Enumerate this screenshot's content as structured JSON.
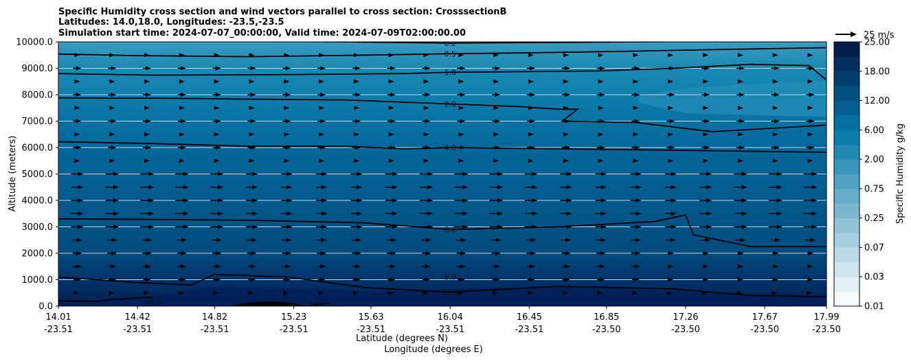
{
  "chart_data": {
    "type": "cross-section",
    "title_lines": [
      "Specific Humidity cross section and wind vectors parallel to cross section: CrosssectionB",
      "Latitudes: 14.0,18.0, Longitudes: -23.5,-23.5",
      "Simulation start time: 2024-07-07_00:00:00, Valid time: 2024-07-09T02:00:00.00"
    ],
    "ylabel": "Altitude (meters)",
    "xlabel_lat": "Latitude (degrees N)",
    "xlabel_lon": "Longitude (degrees E)",
    "ylim": [
      0,
      10000
    ],
    "y_ticks": [
      "0.0",
      "1000.0",
      "2000.0",
      "3000.0",
      "4000.0",
      "5000.0",
      "6000.0",
      "7000.0",
      "8000.0",
      "9000.0",
      "10000.0"
    ],
    "x_ticks": [
      {
        "lat": "14.01",
        "lon": "-23.51"
      },
      {
        "lat": "14.42",
        "lon": "-23.51"
      },
      {
        "lat": "14.82",
        "lon": "-23.51"
      },
      {
        "lat": "15.23",
        "lon": "-23.51"
      },
      {
        "lat": "15.63",
        "lon": "-23.51"
      },
      {
        "lat": "16.04",
        "lon": "-23.51"
      },
      {
        "lat": "16.45",
        "lon": "-23.51"
      },
      {
        "lat": "16.85",
        "lon": "-23.50"
      },
      {
        "lat": "17.26",
        "lon": "-23.50"
      },
      {
        "lat": "17.67",
        "lon": "-23.50"
      },
      {
        "lat": "17.99",
        "lon": "-23.50"
      }
    ],
    "colorbar": {
      "label": "Specific Humidity g/kg",
      "tick_labels": [
        "0.01",
        "0.03",
        "0.07",
        "0.25",
        "0.75",
        "2.00",
        "6.00",
        "12.00",
        "18.00",
        "25.00"
      ],
      "levels": [
        "0.01",
        "0.02",
        "0.03",
        "0.05",
        "0.07",
        "0.1",
        "0.25",
        "0.5",
        "0.75",
        "1.0",
        "2.00",
        "4.0",
        "6.00",
        "8.0",
        "12.00",
        "16.0",
        "18.00",
        "22.0",
        "25.00"
      ],
      "colors": [
        "#f5fafc",
        "#e3f0f5",
        "#cfe5ee",
        "#bbdae6",
        "#a6cfdf",
        "#92c4d8",
        "#7cb9d1",
        "#67adc9",
        "#50a1c2",
        "#3995bb",
        "#1f89b3",
        "#0a7dab",
        "#0670a1",
        "#045f90",
        "#034f80",
        "#023f6f",
        "#022f5e",
        "#011f4d"
      ]
    },
    "quiver_key": {
      "label": "25 m/s",
      "value": 25
    },
    "contours": [
      {
        "level": 0.2,
        "label": "0.2",
        "label_lat": 16.04,
        "label_alt": 9950,
        "profile": [
          [
            14.01,
            10050
          ],
          [
            14.6,
            10040
          ],
          [
            15.5,
            10000
          ],
          [
            16.04,
            9950
          ],
          [
            16.6,
            9980
          ],
          [
            17.2,
            10010
          ],
          [
            17.99,
            10030
          ]
        ]
      },
      {
        "level": 0.5,
        "label": "0.5",
        "label_lat": 16.04,
        "label_alt": 9550,
        "profile": [
          [
            14.01,
            9540
          ],
          [
            14.4,
            9480
          ],
          [
            15.0,
            9440
          ],
          [
            15.6,
            9500
          ],
          [
            16.04,
            9550
          ],
          [
            16.5,
            9590
          ],
          [
            17.0,
            9650
          ],
          [
            17.5,
            9720
          ],
          [
            17.99,
            9780
          ]
        ]
      },
      {
        "level": 1.0,
        "label": "1.0",
        "label_lat": 16.04,
        "label_alt": 8850,
        "profile": [
          [
            14.01,
            8800
          ],
          [
            14.5,
            8740
          ],
          [
            15.2,
            8760
          ],
          [
            15.8,
            8800
          ],
          [
            16.04,
            8850
          ],
          [
            16.8,
            8900
          ],
          [
            17.2,
            9000
          ],
          [
            17.6,
            9150
          ],
          [
            17.9,
            9100
          ],
          [
            17.99,
            8550
          ]
        ]
      },
      {
        "level": 2.0,
        "label": "2.0",
        "label_lat": 16.04,
        "label_alt": 7650,
        "profile": [
          [
            14.01,
            7880
          ],
          [
            14.5,
            7870
          ],
          [
            15.0,
            7830
          ],
          [
            15.5,
            7800
          ],
          [
            16.04,
            7650
          ],
          [
            16.4,
            7550
          ],
          [
            16.6,
            7450
          ],
          [
            16.7,
            7450
          ],
          [
            16.62,
            7000
          ],
          [
            17.0,
            6950
          ],
          [
            17.4,
            6600
          ],
          [
            17.99,
            6850
          ]
        ]
      },
      {
        "level": 4.0,
        "label": "4.0",
        "label_lat": 16.04,
        "label_alt": 6000,
        "profile": [
          [
            14.01,
            6220
          ],
          [
            14.5,
            6150
          ],
          [
            15.0,
            6050
          ],
          [
            15.5,
            6050
          ],
          [
            15.8,
            5950
          ],
          [
            16.04,
            6000
          ],
          [
            16.6,
            5950
          ],
          [
            17.2,
            5900
          ],
          [
            17.99,
            5820
          ]
        ]
      },
      {
        "level": 8.0,
        "label": "8.0",
        "label_lat": 16.04,
        "label_alt": 2900,
        "profile": [
          [
            14.01,
            3300
          ],
          [
            14.5,
            3280
          ],
          [
            15.0,
            3250
          ],
          [
            15.6,
            3150
          ],
          [
            16.04,
            2900
          ],
          [
            16.6,
            3000
          ],
          [
            17.1,
            3200
          ],
          [
            17.26,
            3450
          ],
          [
            17.3,
            2700
          ],
          [
            17.6,
            2250
          ],
          [
            17.99,
            2250
          ]
        ]
      },
      {
        "level": 8.0,
        "label": "8.0",
        "label_lat": 16.04,
        "label_alt": 1100,
        "profile": []
      },
      {
        "level": 12.0,
        "label": "12.0",
        "label_lat": 16.04,
        "label_alt": 530,
        "profile": [
          [
            14.01,
            1100
          ],
          [
            14.4,
            900
          ],
          [
            14.7,
            800
          ],
          [
            14.82,
            1200
          ],
          [
            15.2,
            1100
          ],
          [
            15.6,
            700
          ],
          [
            16.04,
            530
          ],
          [
            16.6,
            750
          ],
          [
            17.2,
            650
          ],
          [
            17.6,
            400
          ],
          [
            17.99,
            350
          ]
        ]
      },
      {
        "level": 16.0,
        "label": "16.0",
        "label_lat": 14.5,
        "label_alt": 200,
        "profile": [
          [
            14.01,
            200
          ],
          [
            14.2,
            180
          ],
          [
            14.3,
            250
          ],
          [
            14.5,
            350
          ]
        ]
      },
      {
        "level": 16.0,
        "label": "16.0",
        "label_lat": 15.35,
        "label_alt": 50,
        "profile": [
          [
            15.3,
            0
          ],
          [
            15.42,
            120
          ]
        ]
      }
    ],
    "terrain": {
      "lat_start": 14.9,
      "lat_peak": 15.1,
      "lat_end": 15.3,
      "peak_alt": 200
    }
  }
}
